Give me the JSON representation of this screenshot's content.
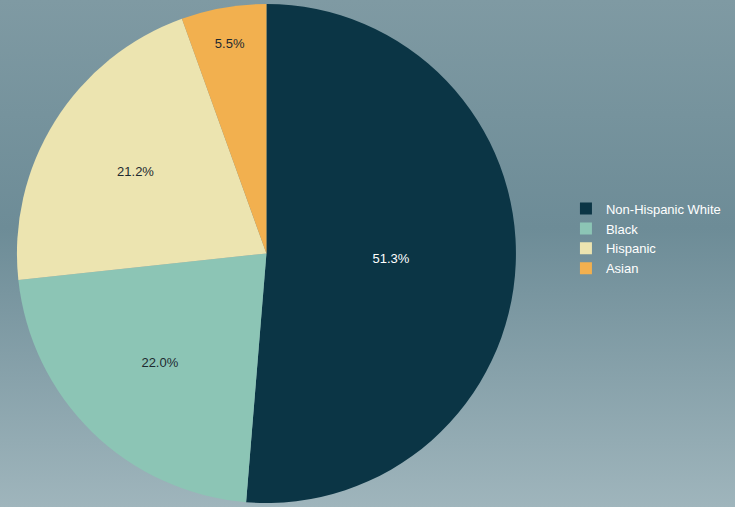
{
  "chart_data": {
    "type": "pie",
    "categories": [
      "Non-Hispanic White",
      "Black",
      "Hispanic",
      "Asian"
    ],
    "values": [
      51.3,
      22.0,
      21.2,
      5.5
    ],
    "value_labels": [
      "51.3%",
      "22.0%",
      "21.2%",
      "5.5%"
    ],
    "colors": [
      "#0b3545",
      "#8cc5b5",
      "#ece4b0",
      "#f2b04f"
    ],
    "data_labels": true,
    "legend": "right"
  }
}
